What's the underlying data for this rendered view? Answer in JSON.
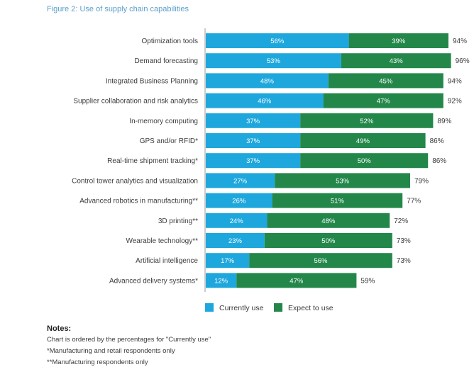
{
  "figure_title": "Figure 2: Use of supply chain capabilities",
  "chart_data": {
    "type": "bar",
    "orientation": "horizontal",
    "stacked": true,
    "title": "Figure 2: Use of supply chain capabilities",
    "categories": [
      "Optimization tools",
      "Demand forecasting",
      "Integrated Business Planning",
      "Supplier collaboration and risk analytics",
      "In-memory computing",
      "GPS and/or RFID*",
      "Real-time shipment tracking*",
      "Control tower analytics and visualization",
      "Advanced robotics in manufacturing**",
      "3D printing**",
      "Wearable technology**",
      "Artificial intelligence",
      "Advanced delivery systems*"
    ],
    "series": [
      {
        "name": "Currently use",
        "color": "#1ea7dc",
        "values": [
          56,
          53,
          48,
          46,
          37,
          37,
          37,
          27,
          26,
          24,
          23,
          17,
          12
        ]
      },
      {
        "name": "Expect to use",
        "color": "#23874a",
        "values": [
          39,
          43,
          45,
          47,
          52,
          49,
          50,
          53,
          51,
          48,
          50,
          56,
          47
        ]
      }
    ],
    "totals": [
      94,
      96,
      94,
      92,
      89,
      86,
      86,
      79,
      77,
      72,
      73,
      73,
      59
    ],
    "value_format": "percent",
    "legend_position": "bottom"
  },
  "notes": {
    "title": "Notes:",
    "lines": [
      "Chart is ordered by the percentages for \"Currently use\"",
      "*Manufacturing and retail respondents only",
      "**Manufacturing respondents only"
    ]
  }
}
